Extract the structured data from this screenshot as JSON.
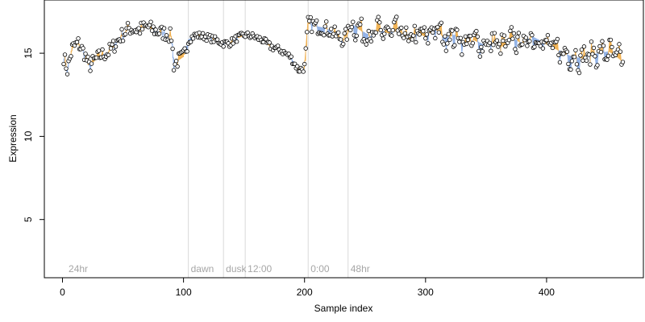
{
  "chart_data": {
    "type": "scatter",
    "title": "",
    "xlabel": "Sample index",
    "ylabel": "Expression",
    "xlim": [
      -15,
      480
    ],
    "ylim": [
      1.5,
      18.2
    ],
    "xticks": [
      0,
      100,
      200,
      300,
      400
    ],
    "yticks": [
      5,
      10,
      15
    ],
    "grid": false,
    "colors": {
      "orange": "#f0b050",
      "blue": "#8fb0e6",
      "point_fill": "#ffffff",
      "point_stroke": "#000000",
      "vline": "#d9d9d9",
      "annotation_text": "#a6a6a6"
    },
    "annotations": [
      {
        "x": 3,
        "line": false,
        "label": "24hr"
      },
      {
        "x": 104,
        "line": true,
        "label": "dawn"
      },
      {
        "x": 133,
        "line": true,
        "label": "dusk"
      },
      {
        "x": 151,
        "line": true,
        "label": "12:00"
      },
      {
        "x": 203,
        "line": true,
        "label": "0:00"
      },
      {
        "x": 236,
        "line": true,
        "label": "48hr"
      }
    ],
    "series_anchors": [
      {
        "x": 1,
        "y": 14.8
      },
      {
        "x": 4,
        "y": 14.0
      },
      {
        "x": 8,
        "y": 15.3
      },
      {
        "x": 13,
        "y": 15.6
      },
      {
        "x": 18,
        "y": 15.0
      },
      {
        "x": 22,
        "y": 14.2
      },
      {
        "x": 27,
        "y": 14.6
      },
      {
        "x": 32,
        "y": 14.9
      },
      {
        "x": 37,
        "y": 15.0
      },
      {
        "x": 42,
        "y": 15.4
      },
      {
        "x": 48,
        "y": 16.0
      },
      {
        "x": 55,
        "y": 16.5
      },
      {
        "x": 63,
        "y": 16.4
      },
      {
        "x": 70,
        "y": 16.6
      },
      {
        "x": 78,
        "y": 16.3
      },
      {
        "x": 85,
        "y": 16.2
      },
      {
        "x": 90,
        "y": 16.0
      },
      {
        "x": 92,
        "y": 14.3
      },
      {
        "x": 96,
        "y": 14.6
      },
      {
        "x": 100,
        "y": 14.8
      },
      {
        "x": 104,
        "y": 15.8
      },
      {
        "x": 110,
        "y": 16.1
      },
      {
        "x": 118,
        "y": 16.0
      },
      {
        "x": 126,
        "y": 15.8
      },
      {
        "x": 133,
        "y": 15.6
      },
      {
        "x": 138,
        "y": 15.6
      },
      {
        "x": 144,
        "y": 15.9
      },
      {
        "x": 151,
        "y": 16.1
      },
      {
        "x": 158,
        "y": 16.0
      },
      {
        "x": 165,
        "y": 15.8
      },
      {
        "x": 172,
        "y": 15.4
      },
      {
        "x": 180,
        "y": 15.2
      },
      {
        "x": 188,
        "y": 14.8
      },
      {
        "x": 195,
        "y": 14.0
      },
      {
        "x": 200,
        "y": 14.1
      },
      {
        "x": 203,
        "y": 16.8
      },
      {
        "x": 210,
        "y": 16.6
      },
      {
        "x": 218,
        "y": 16.5
      },
      {
        "x": 226,
        "y": 16.1
      },
      {
        "x": 232,
        "y": 15.8
      },
      {
        "x": 240,
        "y": 16.7
      },
      {
        "x": 248,
        "y": 16.3
      },
      {
        "x": 255,
        "y": 16.0
      },
      {
        "x": 262,
        "y": 16.4
      },
      {
        "x": 270,
        "y": 16.2
      },
      {
        "x": 278,
        "y": 16.4
      },
      {
        "x": 286,
        "y": 15.8
      },
      {
        "x": 294,
        "y": 16.2
      },
      {
        "x": 300,
        "y": 16.0
      },
      {
        "x": 308,
        "y": 16.5
      },
      {
        "x": 316,
        "y": 15.9
      },
      {
        "x": 324,
        "y": 16.1
      },
      {
        "x": 332,
        "y": 15.6
      },
      {
        "x": 340,
        "y": 15.8
      },
      {
        "x": 348,
        "y": 15.5
      },
      {
        "x": 356,
        "y": 15.7
      },
      {
        "x": 364,
        "y": 15.4
      },
      {
        "x": 372,
        "y": 15.9
      },
      {
        "x": 380,
        "y": 15.6
      },
      {
        "x": 388,
        "y": 16.0
      },
      {
        "x": 396,
        "y": 15.7
      },
      {
        "x": 404,
        "y": 15.4
      },
      {
        "x": 412,
        "y": 15.1
      },
      {
        "x": 420,
        "y": 14.8
      },
      {
        "x": 428,
        "y": 14.7
      },
      {
        "x": 436,
        "y": 14.9
      },
      {
        "x": 444,
        "y": 15.0
      },
      {
        "x": 452,
        "y": 15.1
      },
      {
        "x": 458,
        "y": 14.8
      },
      {
        "x": 463,
        "y": 14.5
      }
    ],
    "n_points": 464
  }
}
